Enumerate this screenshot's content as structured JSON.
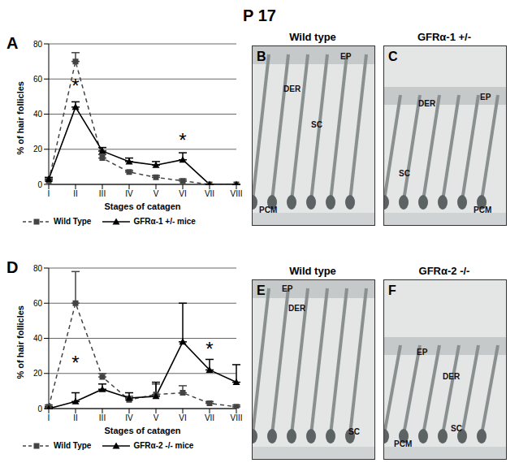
{
  "title": "P 17",
  "chart_data": [
    {
      "panel": "A",
      "type": "line",
      "x_label": "Stages of catagen",
      "y_label": "% of hair follicles",
      "categories": [
        "I",
        "II",
        "III",
        "IV",
        "V",
        "VI",
        "VII",
        "VIII"
      ],
      "ylim": [
        0,
        80
      ],
      "yticks": [
        0,
        20,
        40,
        60,
        80
      ],
      "grid": true,
      "legend": "bottom",
      "series": [
        {
          "name": "Wild Type",
          "color": "#444444",
          "line_style": "dashed",
          "marker": "square",
          "values": [
            2,
            70,
            15,
            7,
            4,
            2,
            0,
            0
          ],
          "errors": [
            1,
            5,
            2,
            1,
            1,
            1,
            0,
            0
          ]
        },
        {
          "name": "GFRα-1 +/- mice",
          "color": "#000000",
          "line_style": "solid",
          "marker": "triangle",
          "values": [
            3,
            44,
            19,
            13,
            11,
            14,
            0,
            0
          ],
          "errors": [
            1,
            3,
            2,
            2,
            2,
            4,
            0,
            0
          ]
        }
      ],
      "annotations": [
        {
          "x": "II",
          "y": 56,
          "text": "*"
        },
        {
          "x": "VI",
          "y": 25,
          "text": "*"
        }
      ]
    },
    {
      "panel": "D",
      "type": "line",
      "x_label": "Stages of catagen",
      "y_label": "% of hair follicles",
      "categories": [
        "I",
        "II",
        "III",
        "IV",
        "V",
        "VI",
        "VII",
        "VIII"
      ],
      "ylim": [
        0,
        80
      ],
      "yticks": [
        0,
        20,
        40,
        60,
        80
      ],
      "grid": true,
      "legend": "bottom",
      "series": [
        {
          "name": "Wild Type",
          "color": "#444444",
          "line_style": "dashed",
          "marker": "square",
          "values": [
            1,
            60,
            18,
            5,
            8,
            9,
            3,
            1
          ],
          "errors": [
            1,
            18,
            2,
            2,
            6,
            4,
            1,
            1
          ]
        },
        {
          "name": "GFRα-2 -/- mice",
          "color": "#000000",
          "line_style": "solid",
          "marker": "triangle",
          "values": [
            0,
            4,
            11,
            6,
            7,
            38,
            22,
            15
          ],
          "errors": [
            1,
            5,
            3,
            3,
            8,
            22,
            6,
            10
          ]
        }
      ],
      "annotations": [
        {
          "x": "II",
          "y": 26,
          "text": "*"
        },
        {
          "x": "VII",
          "y": 34,
          "text": "*"
        }
      ]
    }
  ],
  "images": [
    {
      "panel": "B",
      "title": "Wild type",
      "labels": [
        "EP",
        "DER",
        "SC",
        "PCM"
      ]
    },
    {
      "panel": "C",
      "title": "GFRα-1 +/-",
      "labels": [
        "EP",
        "DER",
        "SC",
        "PCM"
      ]
    },
    {
      "panel": "E",
      "title": "Wild type",
      "labels": [
        "EP",
        "DER",
        "SC"
      ]
    },
    {
      "panel": "F",
      "title": "GFRα-2 -/-",
      "labels": [
        "EP",
        "DER",
        "SC",
        "PCM"
      ]
    }
  ]
}
